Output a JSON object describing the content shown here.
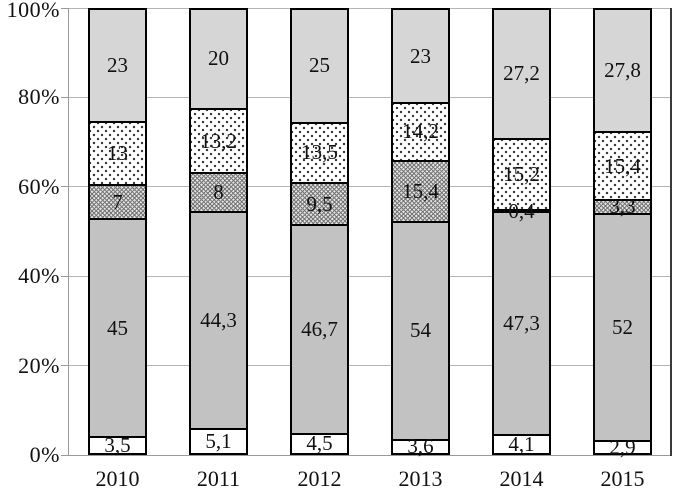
{
  "chart_data": {
    "type": "bar",
    "variant": "stacked-percent",
    "normalized_to_100": true,
    "title": "",
    "xlabel": "",
    "ylabel": "",
    "ylim": [
      0,
      100
    ],
    "grid": true,
    "legend": false,
    "decimal_separator": ",",
    "categories": [
      "2010",
      "2011",
      "2012",
      "2013",
      "2014",
      "2015"
    ],
    "yticks": [
      "0%",
      "20%",
      "40%",
      "60%",
      "80%",
      "100%"
    ],
    "series": [
      {
        "name": "bottom-white-segment",
        "style": "white",
        "values": [
          3.5,
          5.1,
          4.5,
          3.6,
          4.1,
          2.9
        ],
        "labels": [
          "3,5",
          "5,1",
          "4,5",
          "3,6",
          "4,1",
          "2,9"
        ]
      },
      {
        "name": "solid-gray-segment",
        "style": "solid-gray",
        "values": [
          45,
          44.3,
          46.7,
          54,
          47.3,
          52
        ],
        "labels": [
          "45",
          "44,3",
          "46,7",
          "54",
          "47,3",
          "52"
        ]
      },
      {
        "name": "crosshatch-segment",
        "style": "crosshatch",
        "values": [
          7,
          8,
          9.5,
          15.4,
          0.4,
          3.3
        ],
        "labels": [
          "7",
          "8",
          "9,5",
          "15,4",
          "0,4",
          "3,3"
        ]
      },
      {
        "name": "dotted-segment",
        "style": "dotted",
        "values": [
          13,
          13.2,
          13.5,
          14.2,
          15.2,
          15.4
        ],
        "labels": [
          "13",
          "13,2",
          "13,5",
          "14,2",
          "15,2",
          "15,4"
        ]
      },
      {
        "name": "top-light-gray-segment",
        "style": "light-gray",
        "values": [
          23,
          20,
          25,
          23,
          27.2,
          27.8
        ],
        "labels": [
          "23",
          "20",
          "25",
          "23",
          "27,2",
          "27,8"
        ]
      }
    ],
    "colors": {
      "background": "#ffffff",
      "bar_border": "#000000",
      "segment_solid_gray": "#c2c2c2",
      "segment_light_gray": "#d6d6d6",
      "gridline": "#b5b5b5",
      "axis": "#999999"
    }
  }
}
